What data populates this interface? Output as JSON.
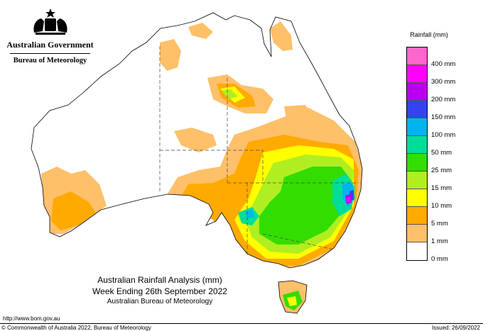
{
  "header": {
    "government": "Australian Government",
    "bureau": "Bureau of Meteorology"
  },
  "legend": {
    "title": "Rainfall (mm)",
    "items": [
      {
        "label": "",
        "color": "#ff66cc"
      },
      {
        "label": "400 mm",
        "color": "#ff00ff"
      },
      {
        "label": "300 mm",
        "color": "#bb00ee"
      },
      {
        "label": "200 mm",
        "color": "#3344ee"
      },
      {
        "label": "150 mm",
        "color": "#00b4f0"
      },
      {
        "label": "100 mm",
        "color": "#00dd99"
      },
      {
        "label": "50 mm",
        "color": "#33dd00"
      },
      {
        "label": "25 mm",
        "color": "#b0ee22"
      },
      {
        "label": "15 mm",
        "color": "#ffff00"
      },
      {
        "label": "10 mm",
        "color": "#ffaa00"
      },
      {
        "label": "5 mm",
        "color": "#ffc06a"
      },
      {
        "label": "1 mm",
        "color": "#ffffff"
      },
      {
        "label": "0 mm",
        "color": ""
      }
    ]
  },
  "caption": {
    "line1": "Australian Rainfall Analysis (mm)",
    "line2": "Week Ending 26th September 2022",
    "line3": "Australian Bureau of Meteorology"
  },
  "footer": {
    "url": "http://www.bom.gov.au",
    "copyright": "© Commonwealth of Australia 2022, Bureau of Meteorology",
    "issued": "Issued: 26/09/2022"
  }
}
